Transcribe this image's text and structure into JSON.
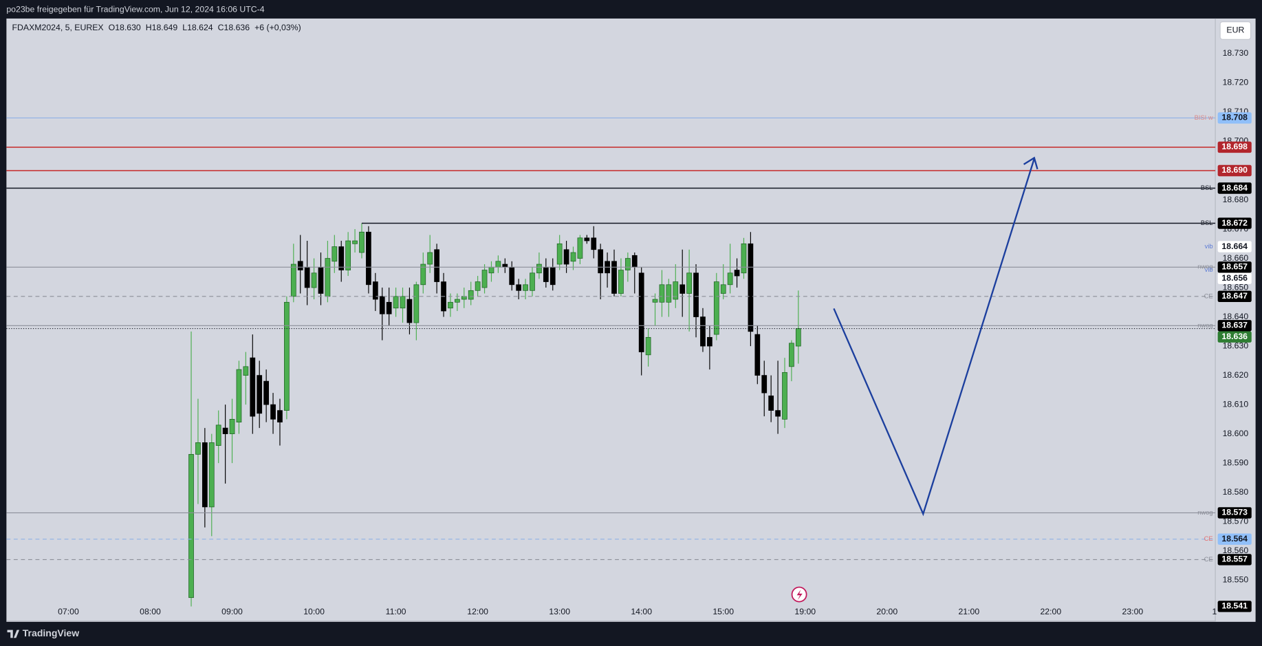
{
  "header": "po23be freigegeben für TradingView.com, Jun 12, 2024 16:06 UTC-4",
  "brand": "TradingView",
  "chart_data": {
    "type": "candlestick",
    "symbol": "FDAXM2024, 5, EUREX",
    "ohlc_legend": [
      "O18.630",
      "H18.649",
      "L18.624",
      "C18.636"
    ],
    "change": "+6 (+0,03%)",
    "currency": "EUR",
    "up_color": "#4caf50",
    "down_color": "#000000",
    "grid": false,
    "x": [
      "08:30",
      "08:35",
      "08:40",
      "08:45",
      "08:50",
      "08:55",
      "09:00",
      "09:05",
      "09:10",
      "09:15",
      "09:20",
      "09:25",
      "09:30",
      "09:35",
      "09:40",
      "09:45",
      "09:50",
      "09:55",
      "10:00",
      "10:05",
      "10:10",
      "10:15",
      "10:20",
      "10:25",
      "10:30",
      "10:35",
      "10:40",
      "10:45",
      "10:50",
      "10:55",
      "11:00",
      "11:05",
      "11:10",
      "11:15",
      "11:20",
      "11:25",
      "11:30",
      "11:35",
      "11:40",
      "11:45",
      "11:50",
      "11:55",
      "12:00",
      "12:05",
      "12:10",
      "12:15",
      "12:20",
      "12:25",
      "12:30",
      "12:35",
      "12:40",
      "12:45",
      "12:50",
      "12:55",
      "13:00",
      "13:05",
      "13:10",
      "13:15",
      "13:20",
      "13:25",
      "13:30",
      "13:35",
      "13:40",
      "13:45",
      "13:50",
      "13:55",
      "14:00",
      "14:05",
      "14:10",
      "14:15",
      "14:20",
      "14:25",
      "14:30",
      "14:35",
      "14:40",
      "14:45",
      "14:50",
      "14:55",
      "15:00",
      "15:05",
      "15:10",
      "15:15",
      "15:20",
      "15:25",
      "15:30",
      "15:35",
      "15:40",
      "15:45",
      "15:50",
      "15:55"
    ],
    "open": [
      18.544,
      18.593,
      18.597,
      18.575,
      18.596,
      18.602,
      18.6,
      18.604,
      18.62,
      18.626,
      18.62,
      18.618,
      18.61,
      18.608,
      18.608,
      18.647,
      18.659,
      18.657,
      18.65,
      18.657,
      18.647,
      18.659,
      18.664,
      18.656,
      18.665,
      18.662,
      18.669,
      18.652,
      18.647,
      18.645,
      18.643,
      18.643,
      18.646,
      18.638,
      18.651,
      18.658,
      18.663,
      18.652,
      18.643,
      18.645,
      18.646,
      18.646,
      18.649,
      18.65,
      18.655,
      18.657,
      18.658,
      18.657,
      18.651,
      18.649,
      18.649,
      18.655,
      18.657,
      18.657,
      18.658,
      18.663,
      18.659,
      18.66,
      18.667,
      18.667,
      18.663,
      18.659,
      18.659,
      18.648,
      18.656,
      18.661,
      18.655,
      18.627,
      18.645,
      18.645,
      18.645,
      18.646,
      18.651,
      18.648,
      18.655,
      18.64,
      18.633,
      18.634,
      18.648,
      18.651,
      18.656,
      18.655,
      18.665,
      18.634,
      18.62,
      18.613,
      18.608,
      18.605,
      18.623,
      18.63
    ],
    "high": [
      18.635,
      18.612,
      18.602,
      18.6,
      18.608,
      18.61,
      18.612,
      18.625,
      18.628,
      18.634,
      18.625,
      18.622,
      18.614,
      18.612,
      18.647,
      18.665,
      18.668,
      18.666,
      18.66,
      18.662,
      18.666,
      18.668,
      18.666,
      18.669,
      18.67,
      18.672,
      18.671,
      18.655,
      18.65,
      18.65,
      18.65,
      18.65,
      18.65,
      18.652,
      18.662,
      18.668,
      18.665,
      18.655,
      18.648,
      18.648,
      18.65,
      18.652,
      18.654,
      18.658,
      18.659,
      18.661,
      18.66,
      18.659,
      18.653,
      18.653,
      18.657,
      18.662,
      18.66,
      18.66,
      18.668,
      18.666,
      18.664,
      18.668,
      18.668,
      18.671,
      18.665,
      18.662,
      18.663,
      18.66,
      18.662,
      18.662,
      18.657,
      18.636,
      18.648,
      18.656,
      18.653,
      18.658,
      18.663,
      18.663,
      18.658,
      18.643,
      18.637,
      18.655,
      18.658,
      18.665,
      18.66,
      18.667,
      18.669,
      18.637,
      18.625,
      18.62,
      18.625,
      18.626,
      18.632,
      18.649
    ],
    "low": [
      18.541,
      18.576,
      18.568,
      18.565,
      18.59,
      18.583,
      18.59,
      18.6,
      18.61,
      18.6,
      18.602,
      18.604,
      18.6,
      18.596,
      18.605,
      18.645,
      18.648,
      18.644,
      18.646,
      18.644,
      18.645,
      18.655,
      18.652,
      18.654,
      18.662,
      18.66,
      18.648,
      18.642,
      18.632,
      18.637,
      18.64,
      18.638,
      18.634,
      18.632,
      18.648,
      18.655,
      18.648,
      18.64,
      18.64,
      18.642,
      18.643,
      18.644,
      18.647,
      18.648,
      18.652,
      18.655,
      18.655,
      18.649,
      18.646,
      18.646,
      18.647,
      18.653,
      18.65,
      18.649,
      18.656,
      18.655,
      18.656,
      18.658,
      18.665,
      18.66,
      18.646,
      18.65,
      18.647,
      18.647,
      18.652,
      18.648,
      18.62,
      18.623,
      18.637,
      18.64,
      18.64,
      18.643,
      18.64,
      18.635,
      18.633,
      18.628,
      18.622,
      18.632,
      18.646,
      18.648,
      18.65,
      18.653,
      18.63,
      18.617,
      18.606,
      18.604,
      18.6,
      18.602,
      18.618,
      18.624
    ],
    "close": [
      18.593,
      18.597,
      18.575,
      18.597,
      18.603,
      18.6,
      18.605,
      18.622,
      18.623,
      18.606,
      18.607,
      18.61,
      18.605,
      18.604,
      18.645,
      18.658,
      18.656,
      18.65,
      18.655,
      18.648,
      18.66,
      18.664,
      18.656,
      18.666,
      18.666,
      18.669,
      18.651,
      18.646,
      18.641,
      18.641,
      18.647,
      18.647,
      18.638,
      18.651,
      18.658,
      18.662,
      18.652,
      18.642,
      18.645,
      18.646,
      18.647,
      18.649,
      18.652,
      18.656,
      18.657,
      18.659,
      18.657,
      18.651,
      18.649,
      18.651,
      18.655,
      18.658,
      18.652,
      18.651,
      18.665,
      18.658,
      18.662,
      18.667,
      18.666,
      18.663,
      18.655,
      18.655,
      18.648,
      18.656,
      18.66,
      18.657,
      18.628,
      18.633,
      18.646,
      18.651,
      18.651,
      18.652,
      18.648,
      18.655,
      18.64,
      18.63,
      18.63,
      18.652,
      18.651,
      18.655,
      18.654,
      18.665,
      18.635,
      18.62,
      18.614,
      18.608,
      18.606,
      18.621,
      18.631,
      18.636
    ],
    "ylim": [
      18.536,
      18.742
    ],
    "yticks": [
      {
        "value": 18.55,
        "label": "18.550"
      },
      {
        "value": 18.56,
        "label": "18.560"
      },
      {
        "value": 18.57,
        "label": "18.570"
      },
      {
        "value": 18.58,
        "label": "18.580"
      },
      {
        "value": 18.59,
        "label": "18.590"
      },
      {
        "value": 18.6,
        "label": "18.600"
      },
      {
        "value": 18.61,
        "label": "18.610"
      },
      {
        "value": 18.62,
        "label": "18.620"
      },
      {
        "value": 18.63,
        "label": "18.630"
      },
      {
        "value": 18.64,
        "label": "18.640"
      },
      {
        "value": 18.65,
        "label": "18.650"
      },
      {
        "value": 18.66,
        "label": "18.660"
      },
      {
        "value": 18.67,
        "label": "18.670"
      },
      {
        "value": 18.68,
        "label": "18.680"
      },
      {
        "value": 18.69,
        "label": "18.690"
      },
      {
        "value": 18.7,
        "label": "18.700"
      },
      {
        "value": 18.71,
        "label": "18.710"
      },
      {
        "value": 18.72,
        "label": "18.720"
      },
      {
        "value": 18.73,
        "label": "18.730"
      }
    ],
    "xticks": [
      "07:00",
      "08:00",
      "09:00",
      "10:00",
      "11:00",
      "12:00",
      "13:00",
      "14:00",
      "15:00",
      "19:00",
      "20:00",
      "21:00",
      "22:00",
      "23:00",
      {
        "value": "24:00",
        "label": "1"
      }
    ],
    "levels": [
      {
        "price": 18.708,
        "label": "18.708",
        "tag": "BISI w",
        "tag_color": "#d98a8a",
        "color": "#8fb1e6",
        "style": "solid",
        "badge": "#90bff9",
        "text_color": "#131722"
      },
      {
        "price": 18.698,
        "label": "18.698",
        "color": "#c62828",
        "style": "solid",
        "badge": "#b2262d",
        "text_color": "#ffffff"
      },
      {
        "price": 18.69,
        "label": "18.690",
        "color": "#c62828",
        "style": "solid",
        "badge": "#b2262d",
        "text_color": "#ffffff"
      },
      {
        "price": 18.684,
        "label": "18.684",
        "tag": "BSL",
        "tag_color": "#131722",
        "color": "#131722",
        "style": "solid",
        "badge": "#000000",
        "text_color": "#ffffff"
      },
      {
        "price": 18.672,
        "label": "18.672",
        "tag": "BSL",
        "tag_color": "#131722",
        "color": "#131722",
        "style": "solid",
        "start": "10:35",
        "badge": "#000000",
        "text_color": "#ffffff"
      },
      {
        "price": 18.664,
        "label": "18.664",
        "tag": "vib",
        "tag_color": "#5b7bd5",
        "style": "none",
        "badge": "#ffffff",
        "text_color": "#131722"
      },
      {
        "price": 18.657,
        "label": "18.657",
        "tag": "nwog",
        "tag_color": "#8c8f99",
        "color": "#8c8f99",
        "style": "solid",
        "badge": "#000000",
        "text_color": "#ffffff"
      },
      {
        "price": 18.656,
        "label": "18.656",
        "tag": "vib",
        "tag_color": "#5b7bd5",
        "style": "none",
        "badge": "#ffffff",
        "text_color": "#131722"
      },
      {
        "price": 18.647,
        "label": "18.647",
        "tag": "CE",
        "tag_color": "#8c8f99",
        "color": "#8c8f99",
        "style": "dashed",
        "badge": "#000000",
        "text_color": "#ffffff"
      },
      {
        "price": 18.637,
        "label": "18.637",
        "tag": "nwog",
        "tag_color": "#8c8f99",
        "color": "#8c8f99",
        "style": "solid",
        "badge": "#000000",
        "text_color": "#ffffff"
      },
      {
        "price": 18.636,
        "label": "18.636",
        "color": "#131722",
        "style": "dotted",
        "badge": "#2e7d32",
        "text_color": "#ffffff"
      },
      {
        "price": 18.573,
        "label": "18.573",
        "tag": "nwog",
        "tag_color": "#8c8f99",
        "color": "#8c8f99",
        "style": "solid",
        "badge": "#000000",
        "text_color": "#ffffff"
      },
      {
        "price": 18.564,
        "label": "18.564",
        "tag": "CE",
        "tag_color": "#e57373",
        "color": "#8fb1e6",
        "style": "dashed",
        "badge": "#90bff9",
        "text_color": "#131722"
      },
      {
        "price": 18.557,
        "label": "18.557",
        "tag": "CE",
        "tag_color": "#8c8f99",
        "color": "#8c8f99",
        "style": "dashed",
        "badge": "#000000",
        "text_color": "#ffffff"
      },
      {
        "price": 18.541,
        "label": "18.541",
        "style": "none",
        "badge": "#000000",
        "text_color": "#ffffff"
      }
    ]
  }
}
